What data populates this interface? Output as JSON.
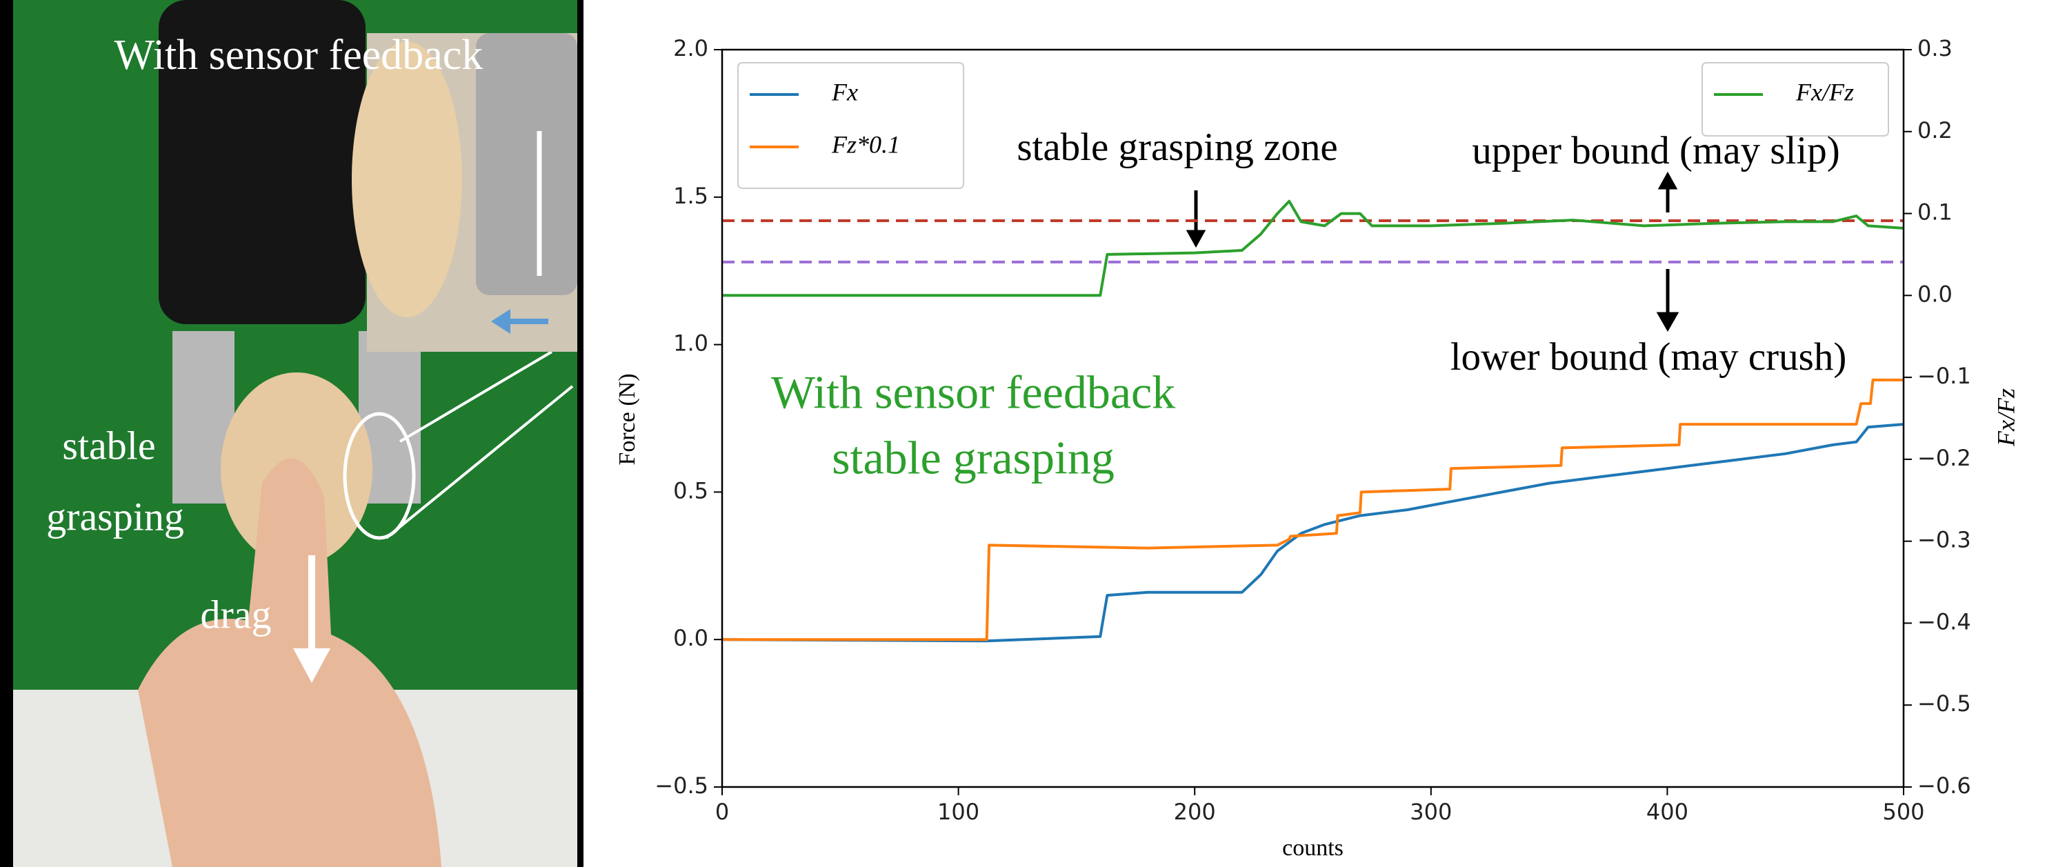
{
  "photo_panel": {
    "texts": [
      "With sensor feedback",
      "stable",
      "grasping",
      "drag"
    ]
  },
  "chart_data": {
    "type": "line",
    "xlabel": "counts",
    "ylabel": "Force (N)",
    "y2label": "Fx/Fz",
    "xlim": [
      0,
      500
    ],
    "xticks": [
      0,
      100,
      200,
      300,
      400,
      500
    ],
    "ylim": [
      -0.5,
      2.0
    ],
    "yticks": [
      {
        "value": -0.5,
        "label": "−0.5"
      },
      {
        "value": 0,
        "label": "0.0"
      },
      {
        "value": 0.5,
        "label": "0.5"
      },
      {
        "value": 1,
        "label": "1.0"
      },
      {
        "value": 1.5,
        "label": "1.5"
      },
      {
        "value": 2,
        "label": "2.0"
      }
    ],
    "y2lim": [
      -0.6,
      0.3
    ],
    "y2ticks": [
      {
        "value": 0.3,
        "label": "0.3"
      },
      {
        "value": 0.2,
        "label": "0.2"
      },
      {
        "value": 0.1,
        "label": "0.1"
      },
      {
        "value": 0,
        "label": "0.0"
      },
      {
        "value": -0.1,
        "label": "−0.1"
      },
      {
        "value": -0.2,
        "label": "−0.2"
      },
      {
        "value": -0.3,
        "label": "−0.3"
      },
      {
        "value": -0.4,
        "label": "−0.4"
      },
      {
        "value": -0.5,
        "label": "−0.5"
      },
      {
        "value": -0.6,
        "label": "−0.6"
      }
    ],
    "series": [
      {
        "name": "Fx",
        "color": "#1f77b4",
        "x": [
          0,
          112,
          160,
          163,
          180,
          220,
          228,
          235,
          245,
          255,
          270,
          290,
          310,
          330,
          350,
          370,
          390,
          410,
          430,
          450,
          470,
          480,
          485,
          500
        ],
        "values": [
          0,
          -0.005,
          0.01,
          0.15,
          0.16,
          0.16,
          0.22,
          0.3,
          0.36,
          0.39,
          0.42,
          0.44,
          0.47,
          0.5,
          0.53,
          0.55,
          0.57,
          0.59,
          0.61,
          0.63,
          0.66,
          0.67,
          0.72,
          0.73
        ]
      },
      {
        "name": "Fz*0.1",
        "color": "#ff7f0e",
        "x": [
          0,
          112,
          113,
          180,
          235,
          240,
          240.5,
          260,
          260.5,
          270,
          270.5,
          308,
          308.5,
          355,
          355.5,
          405,
          405.5,
          480,
          482,
          486,
          487,
          500
        ],
        "values": [
          0,
          0,
          0.32,
          0.31,
          0.32,
          0.34,
          0.35,
          0.36,
          0.42,
          0.43,
          0.5,
          0.51,
          0.58,
          0.59,
          0.65,
          0.66,
          0.73,
          0.73,
          0.8,
          0.8,
          0.88,
          0.88
        ]
      },
      {
        "name": "Fx/Fz",
        "color": "#2ca02c",
        "axis": "y2",
        "x": [
          0,
          160,
          163,
          200,
          220,
          228,
          235,
          240,
          245,
          255,
          262,
          270,
          275,
          300,
          330,
          360,
          390,
          420,
          450,
          470,
          480,
          485,
          500
        ],
        "values": [
          0,
          0,
          0.05,
          0.052,
          0.055,
          0.075,
          0.1,
          0.115,
          0.09,
          0.085,
          0.1,
          0.1,
          0.085,
          0.085,
          0.088,
          0.092,
          0.085,
          0.088,
          0.09,
          0.09,
          0.097,
          0.085,
          0.082
        ]
      }
    ],
    "hlines": [
      {
        "value": 1.42,
        "color": "#c0392b"
      },
      {
        "value": 1.28,
        "color": "#9b6fd6"
      }
    ],
    "annotations": [
      "stable grasping zone",
      "upper bound (may slip)",
      "lower bound (may crush)",
      "With sensor feedback",
      "stable grasping"
    ],
    "annotation_color": "#2ca02c"
  }
}
